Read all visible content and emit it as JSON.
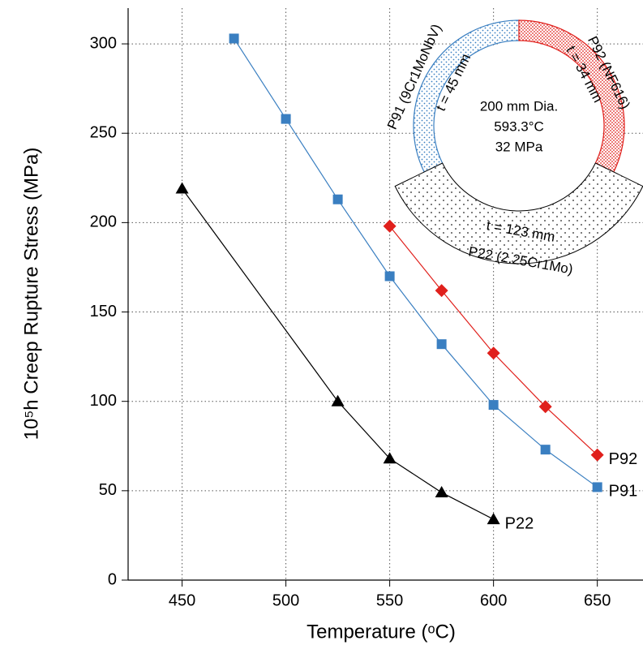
{
  "chart_data": {
    "type": "line",
    "title": null,
    "x_label": "Temperature (ᵒC)",
    "y_label": "10⁵h Creep Rupture Stress (MPa)",
    "xlim": [
      424,
      672
    ],
    "xticks": [
      450,
      500,
      550,
      600,
      650
    ],
    "ylim": [
      0,
      320
    ],
    "yticks": [
      0,
      50,
      100,
      150,
      200,
      250,
      300
    ],
    "grid": true,
    "series": [
      {
        "name": "P91",
        "color": "#3a7fc1",
        "marker": "square",
        "x": [
          475,
          500,
          525,
          550,
          575,
          600,
          625,
          650
        ],
        "values": [
          303,
          258,
          213,
          170,
          132,
          98,
          73,
          52
        ]
      },
      {
        "name": "P92",
        "color": "#e0201c",
        "marker": "diamond",
        "x": [
          550,
          575,
          600,
          625,
          650
        ],
        "values": [
          198,
          162,
          127,
          97,
          70
        ]
      },
      {
        "name": "P22",
        "color": "#000000",
        "marker": "triangle",
        "x": [
          450,
          525,
          550,
          575,
          600
        ],
        "values": [
          219,
          100,
          68,
          49,
          34
        ]
      }
    ],
    "annotations": [
      "P91 (9Cr1MoNbV)",
      "t = 45 mm",
      "P92 (NF616)",
      "t = 34 mm",
      "200 mm Dia.",
      "593.3°C",
      "32 MPa",
      "t = 123 mm",
      "P22 (2.25Cr1Mo)"
    ]
  }
}
